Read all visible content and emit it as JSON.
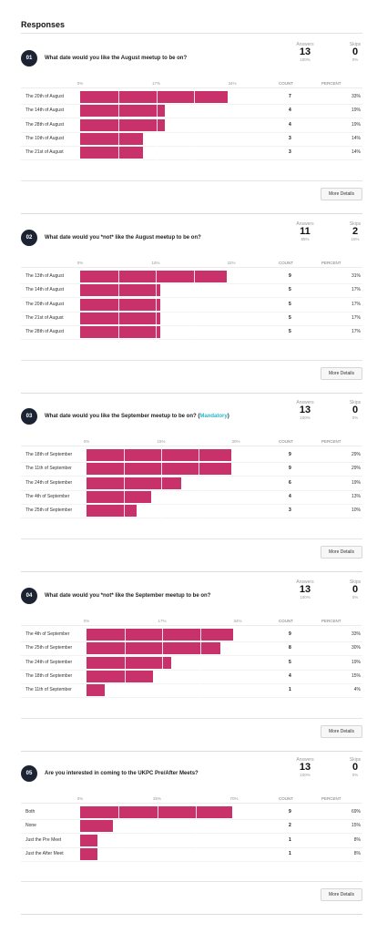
{
  "title": "Responses",
  "labels": {
    "answers": "Answers",
    "skips": "Skips",
    "count": "COUNT",
    "percent": "PERCENT",
    "more_details": "More Details"
  },
  "colors": {
    "bar": "#c8316a",
    "badge": "#1c2333",
    "mandatory": "#2cb5c9"
  },
  "questions": [
    {
      "number": "01",
      "text": "What date would you like the August meetup to be on?",
      "mandatory": "",
      "answers": "13",
      "answers_pct": "100%",
      "skips": "0",
      "skips_pct": "0%",
      "ticks": [
        "0%",
        "17%",
        "34%"
      ],
      "axis_max": 34,
      "options": [
        {
          "label": "The 20th of August",
          "count": "7",
          "percent": "33%",
          "value": 33
        },
        {
          "label": "The 14th of August",
          "count": "4",
          "percent": "19%",
          "value": 19
        },
        {
          "label": "The 28th of August",
          "count": "4",
          "percent": "19%",
          "value": 19
        },
        {
          "label": "The 10th of August",
          "count": "3",
          "percent": "14%",
          "value": 14
        },
        {
          "label": "The 21st of August",
          "count": "3",
          "percent": "14%",
          "value": 14
        }
      ]
    },
    {
      "number": "02",
      "text": "What date would you *not* like the August meetup to be on?",
      "mandatory": "",
      "answers": "11",
      "answers_pct": "85%",
      "skips": "2",
      "skips_pct": "15%",
      "ticks": [
        "0%",
        "16%",
        "32%"
      ],
      "axis_max": 32,
      "options": [
        {
          "label": "The 13th of August",
          "count": "9",
          "percent": "31%",
          "value": 31
        },
        {
          "label": "The 14th of August",
          "count": "5",
          "percent": "17%",
          "value": 17
        },
        {
          "label": "The 20th of August",
          "count": "5",
          "percent": "17%",
          "value": 17
        },
        {
          "label": "The 21st of August",
          "count": "5",
          "percent": "17%",
          "value": 17
        },
        {
          "label": "The 28th of August",
          "count": "5",
          "percent": "17%",
          "value": 17
        }
      ]
    },
    {
      "number": "03",
      "text": "What date would you like the September meetup to be on?",
      "mandatory": "Mandatory",
      "answers": "13",
      "answers_pct": "100%",
      "skips": "0",
      "skips_pct": "0%",
      "ticks": [
        "0%",
        "15%",
        "30%"
      ],
      "axis_max": 30,
      "options": [
        {
          "label": "The 18th of September",
          "count": "9",
          "percent": "29%",
          "value": 29
        },
        {
          "label": "The 11th of September",
          "count": "9",
          "percent": "29%",
          "value": 29
        },
        {
          "label": "The 24th of September",
          "count": "6",
          "percent": "19%",
          "value": 19
        },
        {
          "label": "The 4th of September",
          "count": "4",
          "percent": "13%",
          "value": 13
        },
        {
          "label": "The 25th of September",
          "count": "3",
          "percent": "10%",
          "value": 10
        }
      ]
    },
    {
      "number": "04",
      "text": "What date would you *not* like the September meetup to be on?",
      "mandatory": "",
      "answers": "13",
      "answers_pct": "100%",
      "skips": "0",
      "skips_pct": "0%",
      "ticks": [
        "0%",
        "17%",
        "34%"
      ],
      "axis_max": 34,
      "options": [
        {
          "label": "The 4th of September",
          "count": "9",
          "percent": "33%",
          "value": 33
        },
        {
          "label": "The 25th of September",
          "count": "8",
          "percent": "30%",
          "value": 30
        },
        {
          "label": "The 24th of September",
          "count": "5",
          "percent": "19%",
          "value": 19
        },
        {
          "label": "The 18th of September",
          "count": "4",
          "percent": "15%",
          "value": 15
        },
        {
          "label": "The 11th of September",
          "count": "1",
          "percent": "4%",
          "value": 4
        }
      ]
    },
    {
      "number": "05",
      "text": "Are you interested in coming to the UKPC Pre/After Meets?",
      "mandatory": "",
      "answers": "13",
      "answers_pct": "100%",
      "skips": "0",
      "skips_pct": "0%",
      "ticks": [
        "0%",
        "35%",
        "70%"
      ],
      "axis_max": 70,
      "options": [
        {
          "label": "Both",
          "count": "9",
          "percent": "69%",
          "value": 69
        },
        {
          "label": "None",
          "count": "2",
          "percent": "15%",
          "value": 15
        },
        {
          "label": "Just the Pre Meet",
          "count": "1",
          "percent": "8%",
          "value": 8
        },
        {
          "label": "Just the After Meet",
          "count": "1",
          "percent": "8%",
          "value": 8
        }
      ]
    }
  ]
}
